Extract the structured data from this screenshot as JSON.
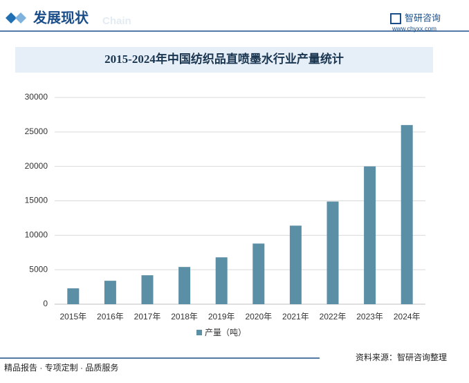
{
  "header": {
    "title": "发展现状",
    "subtitle": "Chain"
  },
  "logo": {
    "name": "智研咨询",
    "url": "www.chyxx.com"
  },
  "chart_data": {
    "type": "bar",
    "title": "2015-2024年中国纺织品直喷墨水行业产量统计",
    "categories": [
      "2015年",
      "2016年",
      "2017年",
      "2018年",
      "2019年",
      "2020年",
      "2021年",
      "2022年",
      "2023年",
      "2024年"
    ],
    "series": [
      {
        "name": "产量（吨）",
        "color": "#5b8fa6",
        "values": [
          2300,
          3400,
          4200,
          5400,
          6800,
          8800,
          11400,
          14900,
          20000,
          26000
        ]
      }
    ],
    "ylim": [
      0,
      30000
    ],
    "yticks": [
      0,
      5000,
      10000,
      15000,
      20000,
      25000,
      30000
    ],
    "grid": true
  },
  "footer": {
    "slogan": "精品报告 · 专项定制 · 品质服务",
    "source": "资料来源：智研咨询整理"
  }
}
